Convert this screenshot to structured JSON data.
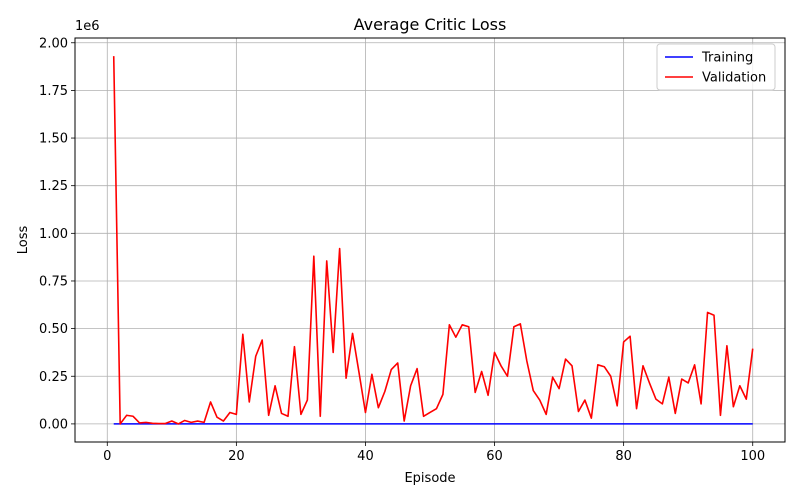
{
  "chart_data": {
    "type": "line",
    "title": "Average Critic Loss",
    "xlabel": "Episode",
    "ylabel": "Loss",
    "y_offset_label": "1e6",
    "xlim": [
      -5,
      105
    ],
    "ylim": [
      -95000,
      2025000
    ],
    "y_scale_factor": 1000000,
    "grid": true,
    "legend_location": "upper right",
    "x_ticks": [
      0,
      20,
      40,
      60,
      80,
      100
    ],
    "x_tick_labels": [
      "0",
      "20",
      "40",
      "60",
      "80",
      "100"
    ],
    "y_ticks": [
      0,
      250000,
      500000,
      750000,
      1000000,
      1250000,
      1500000,
      1750000,
      2000000
    ],
    "y_tick_labels": [
      "0.00",
      "0.25",
      "0.50",
      "0.75",
      "1.00",
      "1.25",
      "1.50",
      "1.75",
      "2.00"
    ],
    "x": [
      1,
      2,
      3,
      4,
      5,
      6,
      7,
      8,
      9,
      10,
      11,
      12,
      13,
      14,
      15,
      16,
      17,
      18,
      19,
      20,
      21,
      22,
      23,
      24,
      25,
      26,
      27,
      28,
      29,
      30,
      31,
      32,
      33,
      34,
      35,
      36,
      37,
      38,
      39,
      40,
      41,
      42,
      43,
      44,
      45,
      46,
      47,
      48,
      49,
      50,
      51,
      52,
      53,
      54,
      55,
      56,
      57,
      58,
      59,
      60,
      61,
      62,
      63,
      64,
      65,
      66,
      67,
      68,
      69,
      70,
      71,
      72,
      73,
      74,
      75,
      76,
      77,
      78,
      79,
      80,
      81,
      82,
      83,
      84,
      85,
      86,
      87,
      88,
      89,
      90,
      91,
      92,
      93,
      94,
      95,
      96,
      97,
      98,
      99,
      100
    ],
    "series": [
      {
        "name": "Training",
        "color": "#0000ff",
        "values": [
          100,
          100,
          100,
          100,
          100,
          100,
          100,
          100,
          100,
          100,
          100,
          100,
          100,
          100,
          100,
          100,
          100,
          100,
          100,
          100,
          100,
          100,
          100,
          100,
          100,
          100,
          100,
          100,
          100,
          100,
          100,
          100,
          100,
          100,
          100,
          100,
          100,
          100,
          100,
          100,
          100,
          100,
          100,
          100,
          100,
          100,
          100,
          100,
          100,
          100,
          100,
          100,
          100,
          100,
          100,
          100,
          100,
          100,
          100,
          100,
          100,
          100,
          100,
          100,
          100,
          100,
          100,
          100,
          100,
          100,
          100,
          100,
          100,
          100,
          100,
          100,
          100,
          100,
          100,
          100,
          100,
          100,
          100,
          100,
          100,
          100,
          100,
          100,
          100,
          100,
          100,
          100,
          100,
          100,
          100,
          100,
          100,
          100,
          100,
          100
        ]
      },
      {
        "name": "Validation",
        "color": "#ff0000",
        "values": [
          1930000,
          0,
          45000,
          40000,
          5000,
          8000,
          3000,
          2000,
          2000,
          15000,
          0,
          18000,
          8000,
          15000,
          8000,
          115000,
          35000,
          15000,
          60000,
          50000,
          470000,
          115000,
          355000,
          440000,
          45000,
          200000,
          55000,
          40000,
          405000,
          50000,
          125000,
          880000,
          40000,
          855000,
          375000,
          920000,
          240000,
          475000,
          270000,
          60000,
          260000,
          85000,
          170000,
          285000,
          320000,
          15000,
          200000,
          290000,
          40000,
          60000,
          80000,
          155000,
          520000,
          455000,
          520000,
          510000,
          165000,
          275000,
          150000,
          375000,
          305000,
          250000,
          510000,
          525000,
          330000,
          175000,
          125000,
          50000,
          245000,
          185000,
          340000,
          305000,
          65000,
          125000,
          30000,
          310000,
          300000,
          250000,
          95000,
          430000,
          460000,
          80000,
          305000,
          215000,
          130000,
          105000,
          245000,
          55000,
          235000,
          215000,
          310000,
          105000,
          585000,
          570000,
          45000,
          410000,
          90000,
          200000,
          130000,
          395000
        ]
      }
    ]
  }
}
